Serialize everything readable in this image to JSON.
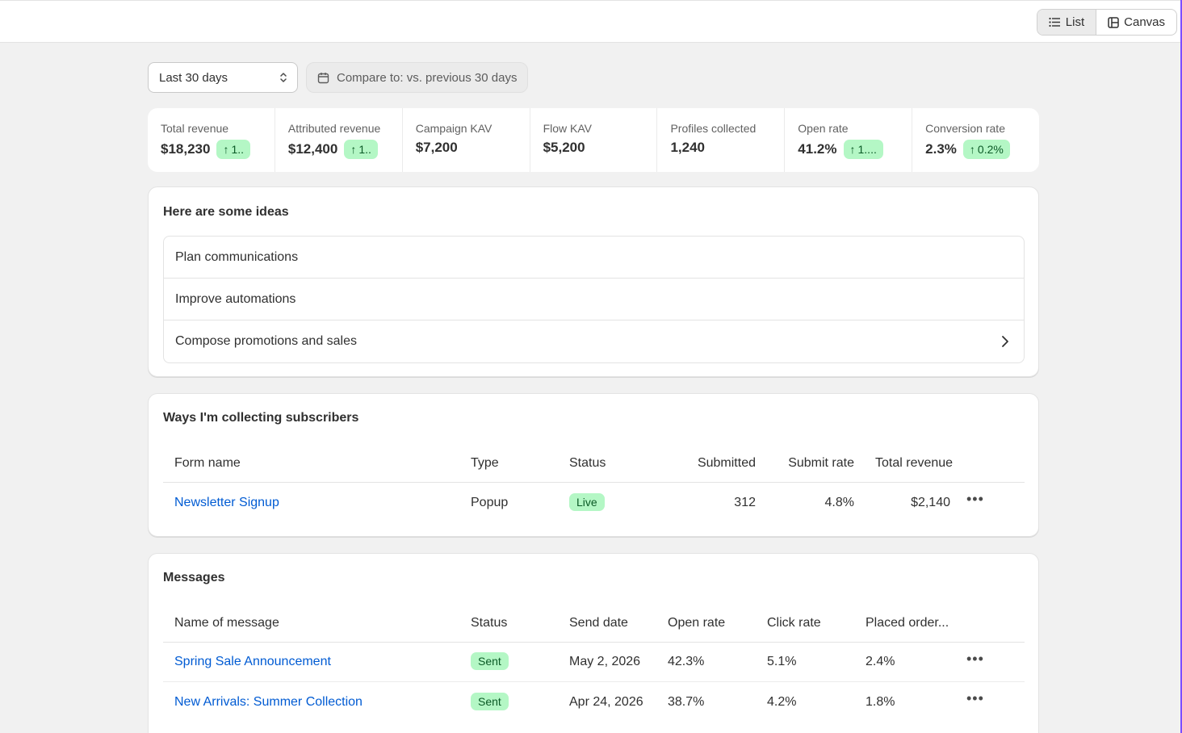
{
  "view_toggle": {
    "list_label": "List",
    "canvas_label": "Canvas",
    "active": "List"
  },
  "filters": {
    "date_range": "Last 30 days",
    "compare": "Compare to: vs. previous 30 days"
  },
  "metrics": [
    {
      "label": "Total revenue",
      "value": "$18,230",
      "change": "1.."
    },
    {
      "label": "Attributed revenue",
      "value": "$12,400",
      "change": "1.."
    },
    {
      "label": "Campaign KAV",
      "value": "$7,200",
      "change": null
    },
    {
      "label": "Flow KAV",
      "value": "$5,200",
      "change": null
    },
    {
      "label": "Profiles collected",
      "value": "1,240",
      "change": null
    },
    {
      "label": "Open rate",
      "value": "41.2%",
      "change": "1...."
    },
    {
      "label": "Conversion rate",
      "value": "2.3%",
      "change": "0.2%"
    }
  ],
  "ideas": {
    "title": "Here are some ideas",
    "items": [
      "Plan communications",
      "Improve automations",
      "Compose promotions and sales"
    ]
  },
  "subscribers": {
    "title": "Ways I'm collecting subscribers",
    "headers": [
      "Form name",
      "Type",
      "Status",
      "Submitted",
      "Submit rate",
      "Total revenue"
    ],
    "rows": [
      {
        "name": "Newsletter Signup",
        "type": "Popup",
        "status": "Live",
        "submitted": "312",
        "submit_rate": "4.8%",
        "revenue": "$2,140"
      }
    ]
  },
  "messages": {
    "title": "Messages",
    "headers": [
      "Name of message",
      "Status",
      "Send date",
      "Open rate",
      "Click rate",
      "Placed order..."
    ],
    "rows": [
      {
        "name": "Spring Sale Announcement",
        "status": "Sent",
        "date": "May 2, 2026",
        "open": "42.3%",
        "click": "5.1%",
        "placed": "2.4%"
      },
      {
        "name": "New Arrivals: Summer Collection",
        "status": "Sent",
        "date": "Apr 24, 2026",
        "open": "38.7%",
        "click": "4.2%",
        "placed": "1.8%"
      }
    ]
  },
  "icons": {
    "list": "list-icon",
    "canvas": "canvas-icon",
    "calendar": "calendar-icon",
    "select_arrows": "select-arrows-icon",
    "arrow_up": "arrow-up-icon",
    "chevron_right": "chevron-right-icon",
    "more": "more-horizontal-icon"
  },
  "colors": {
    "link": "#005bd3",
    "success_bg": "#b4f7c5",
    "success_text": "#0b5a26",
    "accent_edge": "#7c4dff"
  }
}
